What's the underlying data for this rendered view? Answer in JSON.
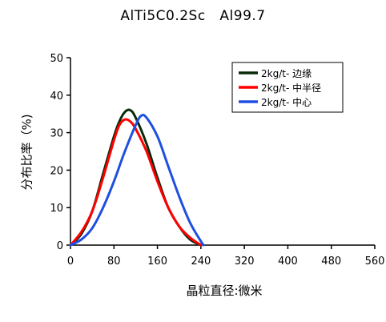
{
  "chart_data": {
    "type": "line",
    "title": "AlTi5C0.2Sc   Al99.7",
    "xlabel": "晶粒直径:微米",
    "ylabel": "分布比率（%)",
    "xlim": [
      0,
      560
    ],
    "ylim": [
      0,
      50
    ],
    "xticks": [
      "0",
      "80",
      "160",
      "240",
      "320",
      "400",
      "480",
      "560"
    ],
    "yticks": [
      "0",
      "10",
      "20",
      "30",
      "40",
      "50"
    ],
    "legend_position": "top-right",
    "series": [
      {
        "name": "2kg/t- 边缘",
        "color": "#0a2a0a",
        "points": [
          [
            0,
            0
          ],
          [
            20,
            3
          ],
          [
            40,
            9
          ],
          [
            60,
            19
          ],
          [
            80,
            29
          ],
          [
            90,
            33
          ],
          [
            100,
            35.5
          ],
          [
            110,
            36
          ],
          [
            120,
            34
          ],
          [
            140,
            27
          ],
          [
            160,
            18
          ],
          [
            180,
            10
          ],
          [
            200,
            5
          ],
          [
            220,
            1.5
          ],
          [
            240,
            0
          ]
        ]
      },
      {
        "name": "2kg/t- 中半径",
        "color": "#ff0000",
        "points": [
          [
            0,
            0
          ],
          [
            20,
            3.5
          ],
          [
            40,
            9
          ],
          [
            60,
            18
          ],
          [
            80,
            28
          ],
          [
            90,
            32
          ],
          [
            100,
            33.5
          ],
          [
            110,
            33
          ],
          [
            120,
            31
          ],
          [
            140,
            25
          ],
          [
            160,
            17
          ],
          [
            180,
            10
          ],
          [
            200,
            5
          ],
          [
            220,
            2
          ],
          [
            240,
            0
          ]
        ]
      },
      {
        "name": "2kg/t- 中心",
        "color": "#1f4fe0",
        "points": [
          [
            0,
            0
          ],
          [
            20,
            1.5
          ],
          [
            40,
            4.5
          ],
          [
            60,
            10
          ],
          [
            80,
            17
          ],
          [
            100,
            25
          ],
          [
            120,
            32
          ],
          [
            130,
            34.5
          ],
          [
            140,
            34
          ],
          [
            160,
            29
          ],
          [
            180,
            21
          ],
          [
            200,
            13
          ],
          [
            220,
            6
          ],
          [
            240,
            1
          ],
          [
            245,
            0
          ]
        ]
      }
    ]
  }
}
